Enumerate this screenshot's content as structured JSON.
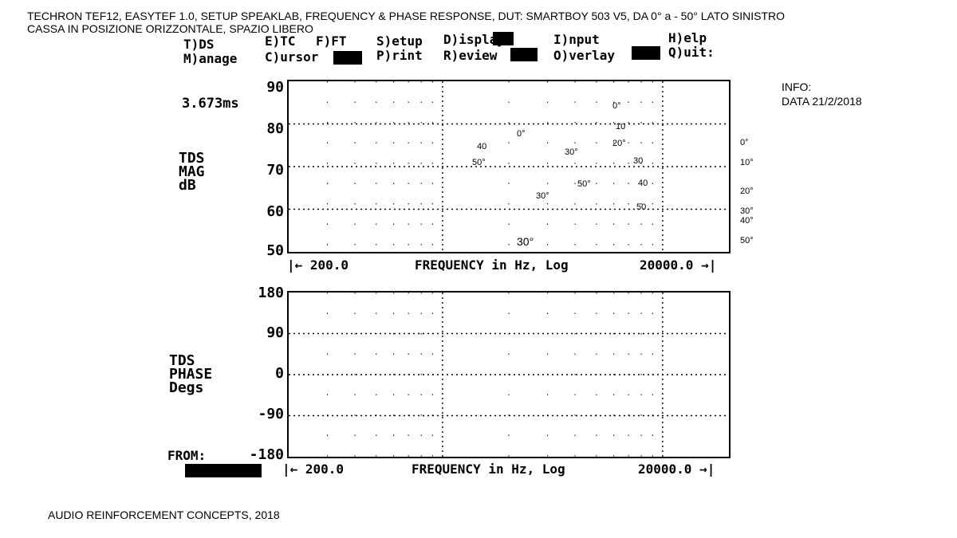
{
  "captions": {
    "title": "TECHRON TEF12, EASYTEF 1.0, SETUP SPEAKLAB, FREQUENCY & PHASE RESPONSE, DUT: SMARTBOY 503 V5, DA 0° a - 50° LATO SINISTRO",
    "subtitle": "CASSA IN POSIZIONE ORIZZONTALE, SPAZIO LIBERO",
    "info_label": "INFO:",
    "info_date": "DATA 21/2/2018",
    "footer": "AUDIO REINFORCEMENT CONCEPTS, 2018"
  },
  "menu": {
    "tds": "T)DS",
    "manage": "M)anage",
    "etc": "E)TC",
    "ft": "F)FT",
    "cursor": "C)ursor",
    "setup": "S)etup",
    "print": "P)rint",
    "display": "D)isplay",
    "review": "R)eview",
    "input": "I)nput",
    "overlay": "O)verlay",
    "help": "H)elp",
    "quit": "Q)uit:"
  },
  "readout": {
    "time": "3.673ms",
    "from_label": "FROM:"
  },
  "chart_data": [
    {
      "type": "line",
      "title": "",
      "ylabel_lines": [
        "TDS",
        "MAG",
        "dB"
      ],
      "xlabel": "FREQUENCY in Hz, Log",
      "x_start_label": "|← 200.0",
      "x_end_label": "20000.0 →|",
      "x_scale": "log",
      "xlim": [
        200,
        20000
      ],
      "ylim": [
        50,
        90
      ],
      "y_ticks": [
        "90",
        "80",
        "70",
        "60",
        "50"
      ],
      "grid": "dotted",
      "angle_annotations_in_plot": [
        "0°",
        "0°",
        "10",
        "20°",
        "30",
        "40",
        "50",
        "40",
        "50°",
        "30°",
        "30°",
        "50°",
        "30°"
      ],
      "legend_angles_right": [
        "0°",
        "10°",
        "20°",
        "30°",
        "40°",
        "50°"
      ],
      "series": []
    },
    {
      "type": "line",
      "title": "",
      "ylabel_lines": [
        "TDS",
        "PHASE",
        "Degs"
      ],
      "xlabel": "FREQUENCY in Hz, Log",
      "x_start_label": "|← 200.0",
      "x_end_label": "20000.0 →|",
      "x_scale": "log",
      "xlim": [
        200,
        20000
      ],
      "ylim": [
        -180,
        180
      ],
      "y_ticks": [
        "180",
        "90",
        "0",
        "-90",
        "-180"
      ],
      "grid": "dotted",
      "series": []
    }
  ]
}
